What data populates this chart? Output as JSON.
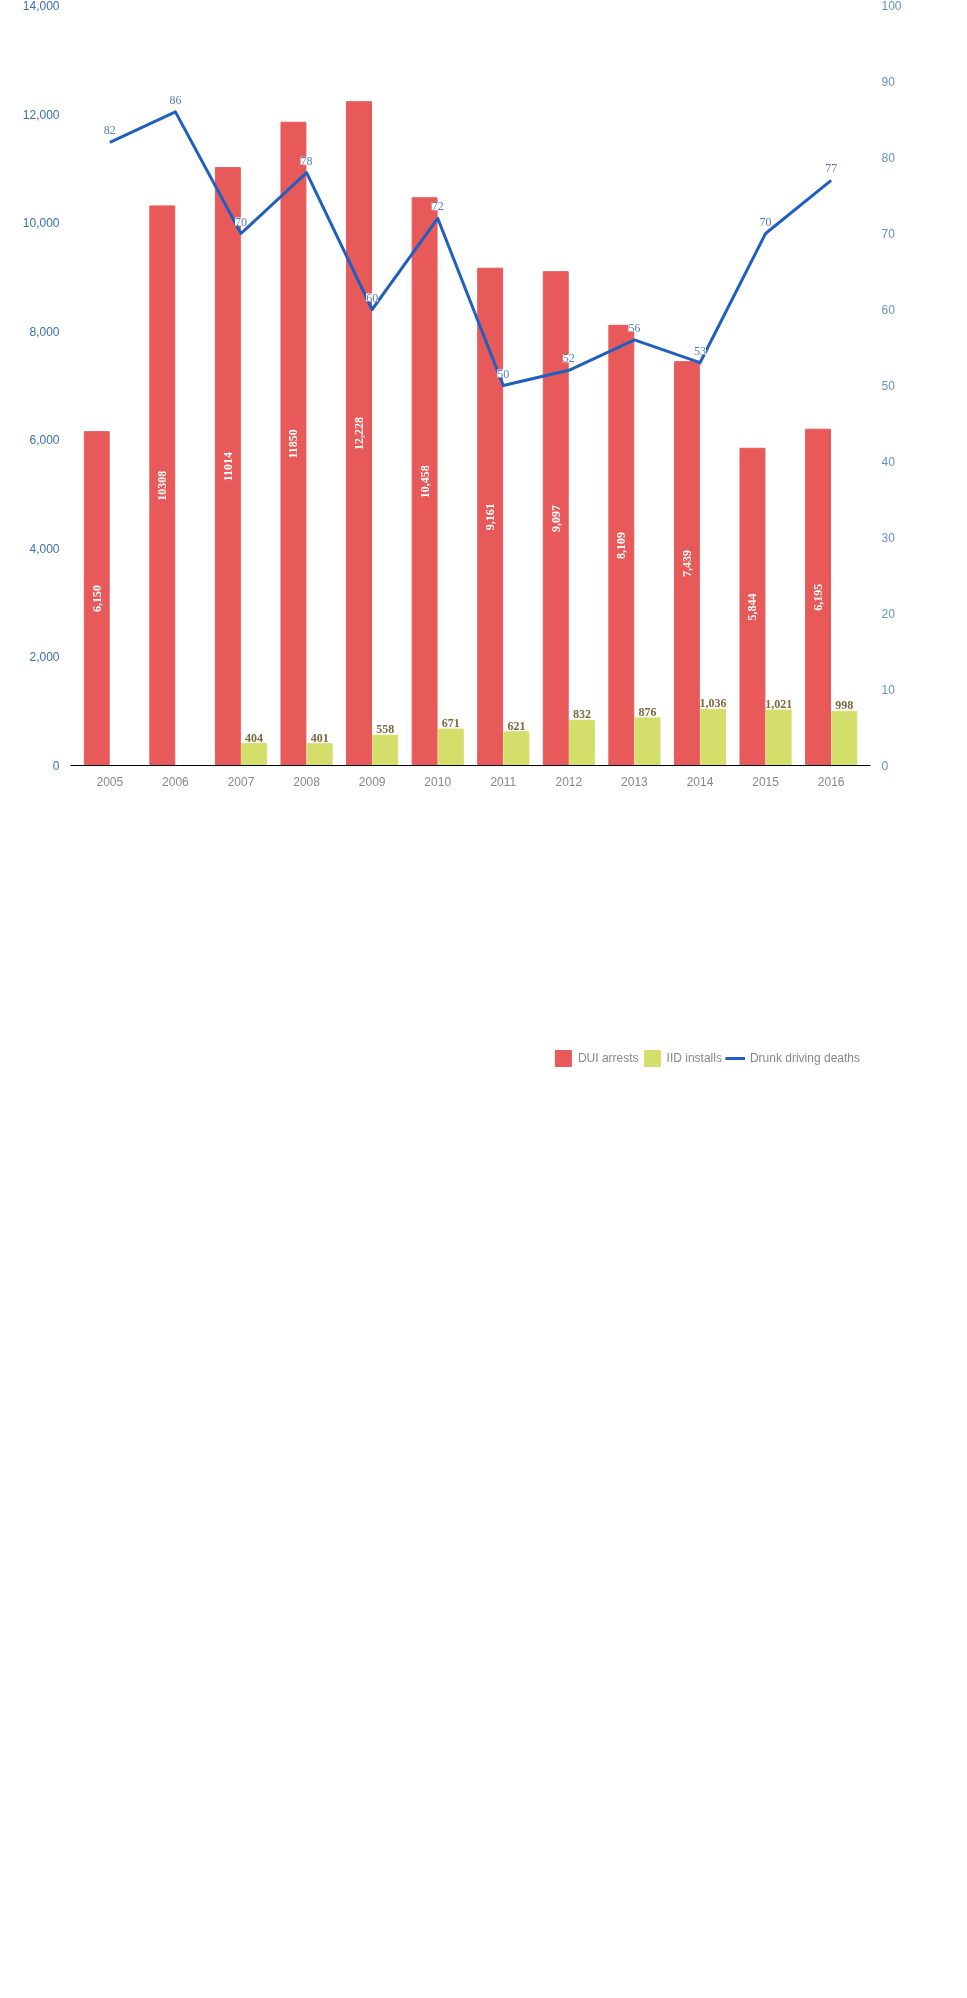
{
  "chart_data": {
    "type": "bar",
    "categories": [
      "2005",
      "2006",
      "2007",
      "2008",
      "2009",
      "2010",
      "2011",
      "2012",
      "2013",
      "2014",
      "2015",
      "2016"
    ],
    "series": [
      {
        "name": "DUI arrests",
        "color": "#e8595a",
        "values": [
          6150,
          10308,
          11014,
          11850,
          12228,
          10458,
          9161,
          9097,
          8109,
          7439,
          5844,
          6195
        ],
        "value_labels": [
          "6,150",
          "10308",
          "11014",
          "11850",
          "12,228",
          "10,458",
          "9,161",
          "9,097",
          "8,109",
          "7,439",
          "5,844",
          "6,195"
        ]
      },
      {
        "name": "IID installs",
        "color": "#d4de6a",
        "values": [
          null,
          null,
          404,
          401,
          558,
          671,
          621,
          832,
          876,
          1036,
          1021,
          998
        ],
        "value_labels": [
          null,
          null,
          "404",
          "401",
          "558",
          "671",
          "621",
          "832",
          "876",
          "1,036",
          "1,021",
          "998"
        ]
      },
      {
        "name": "Drunk driving deaths",
        "type": "line",
        "axis": "y2",
        "color": "#1f5fbf",
        "values": [
          82,
          86,
          70,
          78,
          60,
          72,
          50,
          52,
          56,
          53,
          70,
          77
        ],
        "value_labels": [
          "82",
          "86",
          "70",
          "78",
          "60",
          "72",
          "50",
          "52",
          "56",
          "53",
          "70",
          "77"
        ]
      }
    ],
    "ylim": [
      0,
      14000
    ],
    "yticks": [
      {
        "value": 0,
        "label": "0"
      },
      {
        "value": 2000,
        "label": "2,000"
      },
      {
        "value": 4000,
        "label": "4,000"
      },
      {
        "value": 6000,
        "label": "6,000"
      },
      {
        "value": 8000,
        "label": "8,000"
      },
      {
        "value": 10000,
        "label": "10,000"
      },
      {
        "value": 12000,
        "label": "12,000"
      },
      {
        "value": 14000,
        "label": "14,000"
      }
    ],
    "y2lim": [
      0,
      100
    ],
    "y2ticks": [
      0,
      10,
      20,
      30,
      40,
      50,
      60,
      70,
      80,
      90,
      100
    ],
    "legend": "bottom",
    "grid": false,
    "marker": "none",
    "line_style": "solid"
  }
}
